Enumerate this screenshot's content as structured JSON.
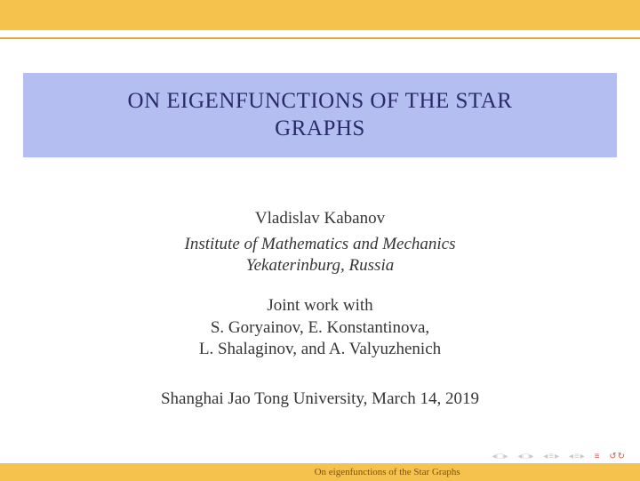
{
  "colors": {
    "header_bg": "#f4c24d",
    "header_shadow": "#d9a93f",
    "title_bg": "#b4bef0",
    "title_text": "#2a2a6a",
    "body_text": "#353538",
    "nav_gray": "#c9c9c9",
    "nav_red": "#d05a4e",
    "footer_text": "#7a5212",
    "page_bg": "#ffffff"
  },
  "title": {
    "line1": "ON EIGENFUNCTIONS OF THE STAR",
    "line2": "GRAPHS"
  },
  "author": "Vladislav Kabanov",
  "affiliation": {
    "line1": "Institute of Mathematics and Mechanics",
    "line2": "Yekaterinburg, Russia"
  },
  "joint": {
    "intro": "Joint work with",
    "line1": "S. Goryainov, E. Konstantinova,",
    "line2": "L. Shalaginov, and A. Valyuzhenich"
  },
  "venue": "Shanghai Jao Tong University, March 14, 2019",
  "footer_title": "On eigenfunctions of the Star Graphs",
  "nav": {
    "frame_back": "◂",
    "frame_glyph": "□",
    "frame_fwd": "▸",
    "sub_back": "◂",
    "sub_glyph": "□",
    "sub_fwd": "▸",
    "sec_back": "◂",
    "sec_glyph": "≡",
    "sec_fwd": "▸",
    "app_back": "◂",
    "app_glyph": "≡",
    "app_fwd": "▸",
    "fs_glyph": "≡",
    "undo": "↺↻"
  }
}
